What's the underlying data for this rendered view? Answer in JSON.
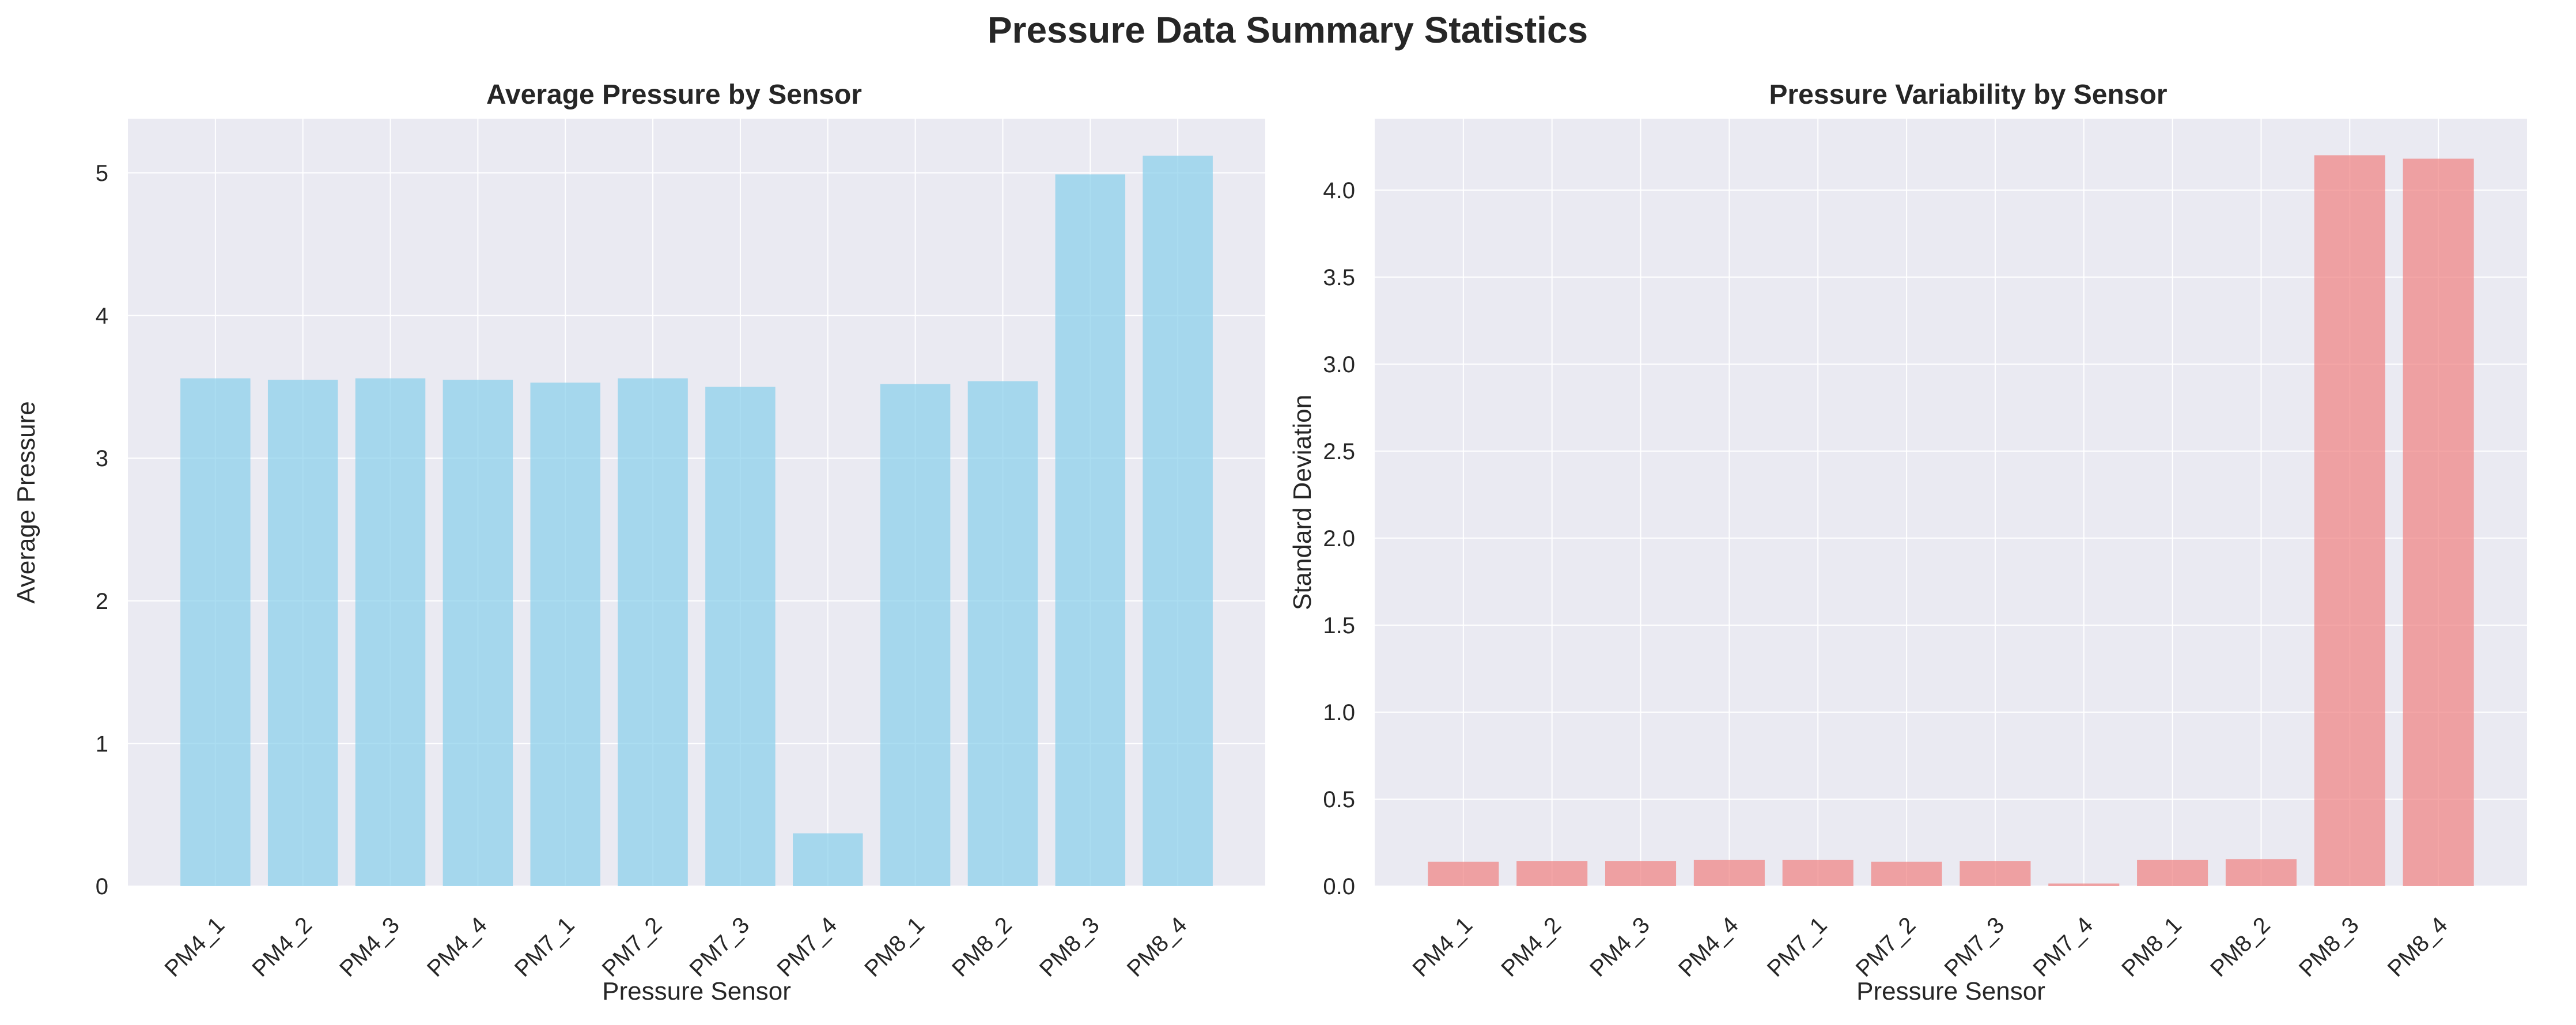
{
  "figure": {
    "suptitle": "Pressure Data Summary Statistics"
  },
  "chart_data": [
    {
      "type": "bar",
      "title": "Average Pressure by Sensor",
      "xlabel": "Pressure Sensor",
      "ylabel": "Average Pressure",
      "categories": [
        "PM4_1",
        "PM4_2",
        "PM4_3",
        "PM4_4",
        "PM7_1",
        "PM7_2",
        "PM7_3",
        "PM7_4",
        "PM8_1",
        "PM8_2",
        "PM8_3",
        "PM8_4"
      ],
      "values": [
        3.56,
        3.55,
        3.56,
        3.55,
        3.53,
        3.56,
        3.5,
        0.37,
        3.52,
        3.54,
        4.99,
        5.12
      ],
      "ylim": [
        0,
        5.38
      ],
      "yticks": [
        0,
        1,
        2,
        3,
        4,
        5
      ],
      "ytick_labels": [
        "0",
        "1",
        "2",
        "3",
        "4",
        "5"
      ],
      "grid": true,
      "bar_color": "#87ceeb",
      "bar_opacity": 0.7,
      "background": "#eaeaf2"
    },
    {
      "type": "bar",
      "title": "Pressure Variability by Sensor",
      "xlabel": "Pressure Sensor",
      "ylabel": "Standard Deviation",
      "categories": [
        "PM4_1",
        "PM4_2",
        "PM4_3",
        "PM4_4",
        "PM7_1",
        "PM7_2",
        "PM7_3",
        "PM7_4",
        "PM8_1",
        "PM8_2",
        "PM8_3",
        "PM8_4"
      ],
      "values": [
        0.14,
        0.145,
        0.145,
        0.15,
        0.15,
        0.14,
        0.145,
        0.015,
        0.15,
        0.155,
        4.2,
        4.18
      ],
      "ylim": [
        0,
        4.41
      ],
      "yticks": [
        0,
        0.5,
        1.0,
        1.5,
        2.0,
        2.5,
        3.0,
        3.5,
        4.0
      ],
      "ytick_labels": [
        "0.0",
        "0.5",
        "1.0",
        "1.5",
        "2.0",
        "2.5",
        "3.0",
        "3.5",
        "4.0"
      ],
      "grid": true,
      "bar_color": "#f08080",
      "bar_opacity": 0.7,
      "background": "#eaeaf2"
    }
  ]
}
